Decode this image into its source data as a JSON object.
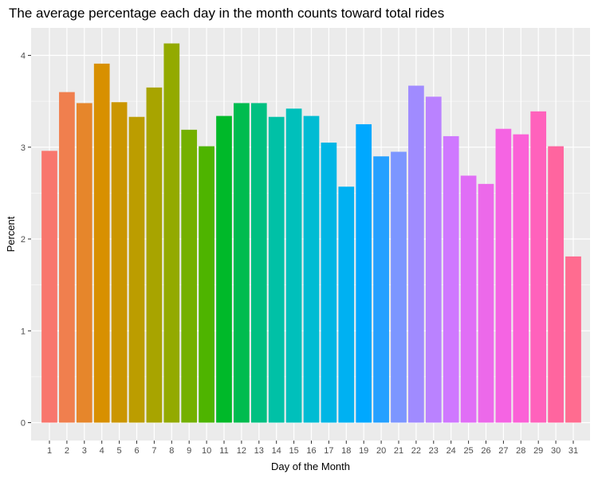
{
  "chart_data": {
    "type": "bar",
    "title": "The average percentage each day in the month counts toward total rides",
    "xlabel": "Day of the Month",
    "ylabel": "Percent",
    "ylim": [
      0,
      4.35
    ],
    "yticks": [
      0,
      1,
      2,
      3,
      4
    ],
    "grid": true,
    "legend": "none",
    "categories": [
      "1",
      "2",
      "3",
      "4",
      "5",
      "6",
      "7",
      "8",
      "9",
      "10",
      "11",
      "12",
      "13",
      "14",
      "15",
      "16",
      "17",
      "18",
      "19",
      "20",
      "21",
      "22",
      "23",
      "24",
      "25",
      "26",
      "27",
      "28",
      "29",
      "30",
      "31"
    ],
    "values": [
      2.96,
      3.6,
      3.48,
      3.91,
      3.49,
      3.33,
      3.65,
      4.13,
      3.19,
      3.01,
      3.34,
      3.48,
      3.48,
      3.33,
      3.42,
      3.34,
      3.05,
      2.57,
      3.25,
      2.9,
      2.95,
      3.67,
      3.55,
      3.12,
      2.69,
      2.6,
      3.2,
      3.14,
      3.39,
      3.01,
      1.81
    ],
    "colors": [
      "#F8766D",
      "#F07F4E",
      "#E6862B",
      "#D89000",
      "#CB9600",
      "#BC9D00",
      "#A8A400",
      "#93AA00",
      "#74B000",
      "#4EB400",
      "#00B929",
      "#00BC4F",
      "#00C081",
      "#00C1A6",
      "#00C0BB",
      "#00BCD3",
      "#00B6E5",
      "#00B1F2",
      "#00A8FF",
      "#24A0FF",
      "#7C96FF",
      "#A08BFF",
      "#BA82FF",
      "#CF78FF",
      "#E06EF6",
      "#EC69EA",
      "#F564E3",
      "#FB61D7",
      "#FF62BC",
      "#FF659F",
      "#FF6C90"
    ],
    "panel_background": "#EBEBEB",
    "grid_color": "#FFFFFF"
  }
}
